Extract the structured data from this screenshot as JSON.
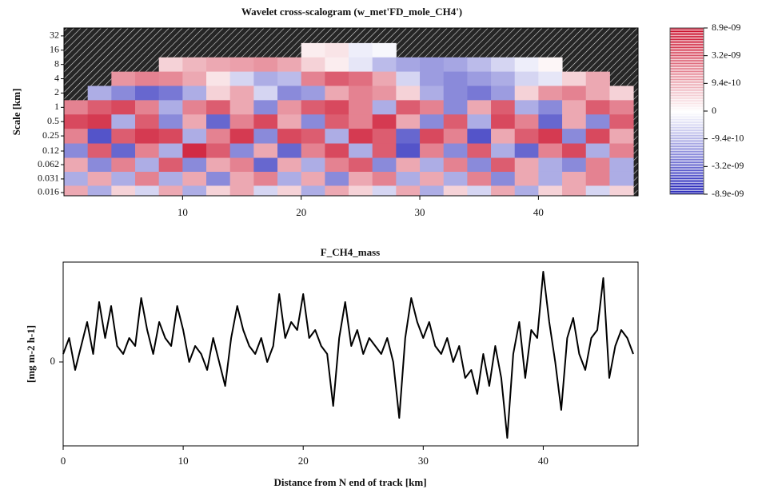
{
  "chart_data": [
    {
      "type": "heatmap",
      "title": "Wavelet cross-scalogram (w_met'FD_mole_CH4')",
      "y_label": "Scale [km]",
      "xlim": [
        0,
        48.4
      ],
      "xticks": [
        10,
        20,
        30,
        40
      ],
      "ylim": [
        0.0137,
        47
      ],
      "y_log": true,
      "yticks": [
        32,
        16,
        8,
        4,
        2,
        1,
        0.5,
        0.25,
        0.12,
        0.062,
        0.031,
        0.016
      ],
      "x": [
        1,
        3,
        5,
        7,
        9,
        11,
        13,
        15,
        17,
        19,
        21,
        23,
        25,
        27,
        29,
        31,
        33,
        35,
        37,
        39,
        41,
        43,
        45,
        47
      ],
      "y": [
        32,
        16,
        8,
        4,
        2,
        1,
        0.5,
        0.25,
        0.12,
        0.062,
        0.031,
        0.016
      ],
      "values": [
        [
          null,
          null,
          null,
          null,
          null,
          null,
          null,
          null,
          null,
          null,
          null,
          null,
          null,
          null,
          null,
          null,
          null,
          null,
          null,
          null,
          null,
          null,
          null,
          null
        ],
        [
          null,
          null,
          null,
          null,
          null,
          null,
          null,
          null,
          null,
          null,
          2e-10,
          3e-10,
          -2e-10,
          -1e-10,
          null,
          null,
          null,
          null,
          null,
          null,
          null,
          null,
          null,
          null
        ],
        [
          null,
          null,
          null,
          null,
          5e-10,
          8e-10,
          1e-09,
          1.2e-09,
          1.5e-09,
          1e-09,
          5e-10,
          2e-10,
          -3e-10,
          -8e-10,
          -1.2e-09,
          -1.5e-09,
          -1.2e-09,
          -8e-10,
          -5e-10,
          -2e-10,
          1e-10,
          null,
          null,
          null
        ],
        [
          null,
          null,
          1.5e-09,
          2e-09,
          1.8e-09,
          1e-09,
          3e-10,
          -5e-10,
          -1e-09,
          -8e-10,
          2e-09,
          3e-09,
          2.5e-09,
          1e-09,
          -5e-10,
          -1.5e-09,
          -2e-09,
          -1.5e-09,
          -1e-09,
          -5e-10,
          -3e-10,
          5e-10,
          1e-09,
          null
        ],
        [
          null,
          -1e-09,
          -2e-09,
          -3e-09,
          -2.5e-09,
          -1e-09,
          5e-10,
          1e-09,
          -5e-10,
          -2e-09,
          -1.5e-09,
          1e-09,
          2e-09,
          1.5e-09,
          5e-10,
          -1e-09,
          -2e-09,
          -2.5e-09,
          -1.5e-09,
          5e-10,
          1.5e-09,
          2e-09,
          1e-09,
          5e-10
        ],
        [
          2e-09,
          3e-09,
          4e-09,
          2e-09,
          -1e-09,
          2e-09,
          3e-09,
          1e-09,
          -2e-09,
          1.5e-09,
          3e-09,
          4e-09,
          2e-09,
          -1e-09,
          3e-09,
          2e-09,
          -2e-09,
          1e-09,
          3e-09,
          -1e-09,
          -2e-09,
          1e-09,
          3e-09,
          2e-09
        ],
        [
          4e-09,
          5e-09,
          -1e-09,
          3e-09,
          -2e-09,
          1e-09,
          -3e-09,
          2e-09,
          4e-09,
          1e-09,
          -2e-09,
          3e-09,
          2e-09,
          5e-09,
          1e-09,
          -2e-09,
          3e-09,
          -1e-09,
          4e-09,
          2e-09,
          -3e-09,
          1e-09,
          -2e-09,
          3e-09
        ],
        [
          2e-09,
          -4e-09,
          3e-09,
          5e-09,
          4e-09,
          -1e-09,
          2e-09,
          5e-09,
          -2e-09,
          4e-09,
          3e-09,
          -1e-09,
          5e-09,
          3e-09,
          -3e-09,
          4e-09,
          2e-09,
          -4e-09,
          1e-09,
          3e-09,
          5e-09,
          -2e-09,
          4e-09,
          1e-09
        ],
        [
          -2e-09,
          3e-09,
          -3e-09,
          2e-09,
          -1e-09,
          6e-09,
          3e-09,
          -2e-09,
          1e-09,
          -3e-09,
          2e-09,
          4e-09,
          -1e-09,
          3e-09,
          -4e-09,
          2e-09,
          -2e-09,
          3e-09,
          -1e-09,
          -3e-09,
          2e-09,
          4e-09,
          -1e-09,
          2e-09
        ],
        [
          1e-09,
          -2e-09,
          2e-09,
          -1e-09,
          3e-09,
          -2e-09,
          1e-09,
          2e-09,
          -3e-09,
          1e-09,
          -1e-09,
          2e-09,
          3e-09,
          -2e-09,
          1e-09,
          -1e-09,
          2e-09,
          -2e-09,
          3e-09,
          1e-09,
          -1e-09,
          -2e-09,
          2e-09,
          -1e-09
        ],
        [
          -1e-09,
          1e-09,
          -1e-09,
          2e-09,
          -1e-09,
          1e-09,
          -2e-09,
          1e-09,
          2e-09,
          -1e-09,
          1e-09,
          -2e-09,
          1e-09,
          2e-09,
          -1e-09,
          1e-09,
          -1e-09,
          2e-09,
          -2e-09,
          1e-09,
          -1e-09,
          1e-09,
          2e-09,
          -1e-09
        ],
        [
          1e-09,
          -1e-09,
          5e-10,
          -5e-10,
          1e-09,
          -1e-09,
          5e-10,
          1e-09,
          -5e-10,
          5e-10,
          -1e-09,
          1e-09,
          5e-10,
          -5e-10,
          1e-09,
          -1e-09,
          5e-10,
          -5e-10,
          1e-09,
          -1e-09,
          5e-10,
          1e-09,
          -5e-10,
          5e-10
        ]
      ],
      "colorbar_ticks": [
        {
          "value": 8.9e-09,
          "label": "8.9e-09"
        },
        {
          "value": 3.2e-09,
          "label": "3.2e-09"
        },
        {
          "value": 9.4e-10,
          "label": "9.4e-10"
        },
        0,
        {
          "value": -9.4e-10,
          "label": "-9.4e-10"
        },
        {
          "value": -3.2e-09,
          "label": "-3.2e-09"
        },
        {
          "value": -8.9e-09,
          "label": "-8.9e-09"
        }
      ],
      "positive_color": "#c8001e",
      "negative_color": "#1010b4"
    },
    {
      "type": "line",
      "title": "F_CH4_mass",
      "x_label": "Distance from N end of track [km]",
      "y_label": "[mg m-2 h-1]",
      "xlim": [
        0,
        47.9
      ],
      "xticks": [
        0,
        10,
        20,
        30,
        40
      ],
      "ylim": [
        -1.05,
        1.25
      ],
      "yticks": [
        0
      ],
      "color": "#000000",
      "x": [
        0,
        0.5,
        1,
        1.5,
        2,
        2.5,
        3,
        3.5,
        4,
        4.5,
        5,
        5.5,
        6,
        6.5,
        7,
        7.5,
        8,
        8.5,
        9,
        9.5,
        10,
        10.5,
        11,
        11.5,
        12,
        12.5,
        13,
        13.5,
        14,
        14.5,
        15,
        15.5,
        16,
        16.5,
        17,
        17.5,
        18,
        18.5,
        19,
        19.5,
        20,
        20.5,
        21,
        21.5,
        22,
        22.5,
        23,
        23.5,
        24,
        24.5,
        25,
        25.5,
        26,
        26.5,
        27,
        27.5,
        28,
        28.5,
        29,
        29.5,
        30,
        30.5,
        31,
        31.5,
        32,
        32.5,
        33,
        33.5,
        34,
        34.5,
        35,
        35.5,
        36,
        36.5,
        37,
        37.5,
        38,
        38.5,
        39,
        39.5,
        40,
        40.5,
        41,
        41.5,
        42,
        42.5,
        43,
        43.5,
        44,
        44.5,
        45,
        45.5,
        46,
        46.5,
        47,
        47.5
      ],
      "values": [
        0.1,
        0.3,
        -0.1,
        0.2,
        0.5,
        0.1,
        0.75,
        0.3,
        0.7,
        0.2,
        0.1,
        0.3,
        0.2,
        0.8,
        0.4,
        0.1,
        0.5,
        0.3,
        0.2,
        0.7,
        0.4,
        0.0,
        0.2,
        0.1,
        -0.1,
        0.3,
        0.0,
        -0.3,
        0.3,
        0.7,
        0.4,
        0.2,
        0.1,
        0.3,
        0.0,
        0.2,
        0.85,
        0.3,
        0.5,
        0.4,
        0.85,
        0.3,
        0.4,
        0.2,
        0.1,
        -0.55,
        0.3,
        0.75,
        0.2,
        0.4,
        0.1,
        0.3,
        0.2,
        0.1,
        0.3,
        0.0,
        -0.7,
        0.3,
        0.8,
        0.5,
        0.3,
        0.5,
        0.2,
        0.1,
        0.3,
        0.0,
        0.2,
        -0.2,
        -0.1,
        -0.4,
        0.1,
        -0.3,
        0.2,
        -0.2,
        -0.95,
        0.1,
        0.5,
        -0.2,
        0.4,
        0.3,
        1.13,
        0.5,
        0.0,
        -0.6,
        0.3,
        0.55,
        0.1,
        -0.1,
        0.3,
        0.4,
        1.05,
        -0.2,
        0.2,
        0.4,
        0.3,
        0.1
      ]
    }
  ]
}
